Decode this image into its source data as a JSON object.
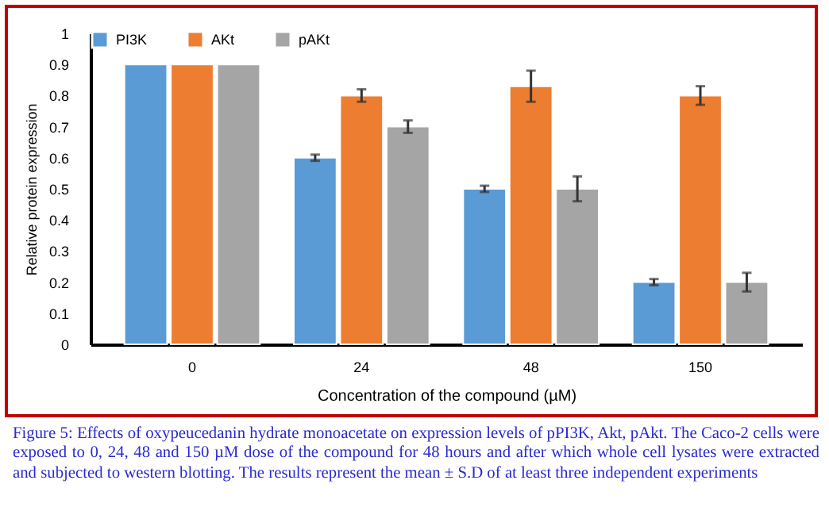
{
  "chart_data": {
    "type": "bar",
    "ylabel": "Relative protein expression",
    "xlabel": "Concentration of the compound (µM)",
    "categories": [
      "0",
      "24",
      "48",
      "150"
    ],
    "series": [
      {
        "name": "PI3K",
        "color": "#5b9bd5",
        "values": [
          0.9,
          0.6,
          0.5,
          0.2
        ],
        "errors": [
          null,
          0.01,
          0.01,
          0.01
        ]
      },
      {
        "name": "AKt",
        "color": "#ed7d31",
        "values": [
          0.9,
          0.8,
          0.83,
          0.8
        ],
        "errors": [
          null,
          0.02,
          0.05,
          0.03
        ]
      },
      {
        "name": "pAKt",
        "color": "#a5a5a5",
        "values": [
          0.9,
          0.7,
          0.5,
          0.2
        ],
        "errors": [
          null,
          0.02,
          0.04,
          0.03
        ]
      }
    ],
    "ylim": [
      0,
      1
    ],
    "yticks": [
      0,
      0.1,
      0.2,
      0.3,
      0.4,
      0.5,
      0.6,
      0.7,
      0.8,
      0.9,
      1
    ],
    "grid": false,
    "legend": "top",
    "annotations": [
      "Figure 5: Effects of oxypeucedanin hydrate monoacetate on expression levels of pPI3K, Akt, pAkt. The Caco-2 cells were exposed to 0, 24, 48 and 150 µM dose of the compound for 48 hours and after which whole cell lysates were extracted and subjected to western blotting. The results represent the mean ± S.D of at least three independent experiments"
    ]
  }
}
